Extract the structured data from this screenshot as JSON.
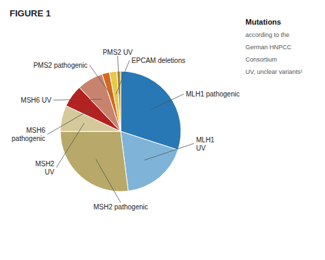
{
  "chart_data": {
    "type": "pie",
    "title": "FIGURE 1",
    "subtitle": "Mutations",
    "annotations": [
      "according to the",
      "German HNPCC",
      "Consortium",
      "UV, unclear variants¹"
    ],
    "categories": [
      "MLH1 pathogenic",
      "MLH1\nUV",
      "MSH2 pathogenic",
      "MSH2\nUV",
      "MSH6\npathogenic",
      "MSH6 UV",
      "PMS2 pathogenic",
      "EPCAM deletions",
      "PMS2 UV"
    ],
    "values": [
      30,
      18,
      27,
      7,
      6,
      7,
      2,
      2,
      1
    ],
    "colors": [
      "#2878b5",
      "#7fb4d8",
      "#b8a96a",
      "#d4c99a",
      "#b22222",
      "#c8836e",
      "#d2691e",
      "#e8c84a",
      "#c8a020"
    ]
  }
}
